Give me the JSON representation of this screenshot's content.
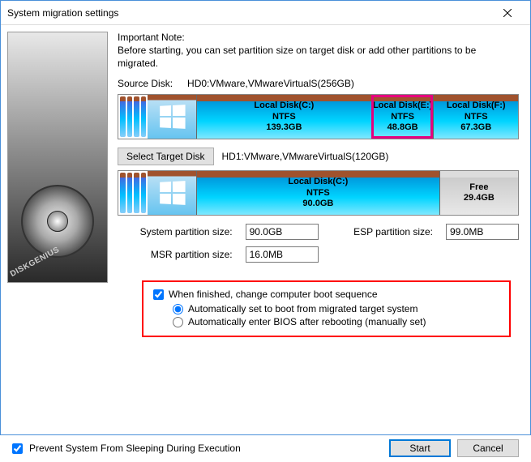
{
  "window": {
    "title": "System migration settings"
  },
  "note": {
    "title": "Important Note:",
    "text": "Before starting, you can set partition size on target disk or add other partitions to be migrated."
  },
  "source": {
    "label": "Source Disk:",
    "value": "HD0:VMware,VMwareVirtualS(256GB)",
    "partitions": [
      {
        "name": "Local Disk(C:)",
        "fs": "NTFS",
        "size": "139.3GB",
        "flex": 139,
        "selected": false
      },
      {
        "name": "Local Disk(E:)",
        "fs": "NTFS",
        "size": "48.8GB",
        "flex": 49,
        "selected": true
      },
      {
        "name": "Local Disk(F:)",
        "fs": "NTFS",
        "size": "67.3GB",
        "flex": 67,
        "selected": false
      }
    ]
  },
  "target": {
    "button": "Select Target Disk",
    "value": "HD1:VMware,VMwareVirtualS(120GB)",
    "partitions": [
      {
        "name": "Local Disk(C:)",
        "fs": "NTFS",
        "size": "90.0GB",
        "flex": 90,
        "free": false
      },
      {
        "name": "Free",
        "fs": "",
        "size": "29.4GB",
        "flex": 29,
        "free": true
      }
    ]
  },
  "sizes": {
    "system_label": "System partition size:",
    "system_value": "90.0GB",
    "esp_label": "ESP partition size:",
    "esp_value": "99.0MB",
    "msr_label": "MSR partition size:",
    "msr_value": "16.0MB"
  },
  "boot": {
    "check_label": "When finished, change computer boot sequence",
    "checked": true,
    "radio1": "Automatically set to boot from migrated target system",
    "radio2": "Automatically enter BIOS after rebooting (manually set)",
    "radio_selected": 1
  },
  "footer": {
    "prevent_sleep": "Prevent System From Sleeping During Execution",
    "prevent_sleep_checked": true,
    "start": "Start",
    "cancel": "Cancel"
  },
  "brand": "DISKGENIUS",
  "colors": {
    "highlight_border": "#ff0000",
    "selected_outline": "#e6007e"
  }
}
